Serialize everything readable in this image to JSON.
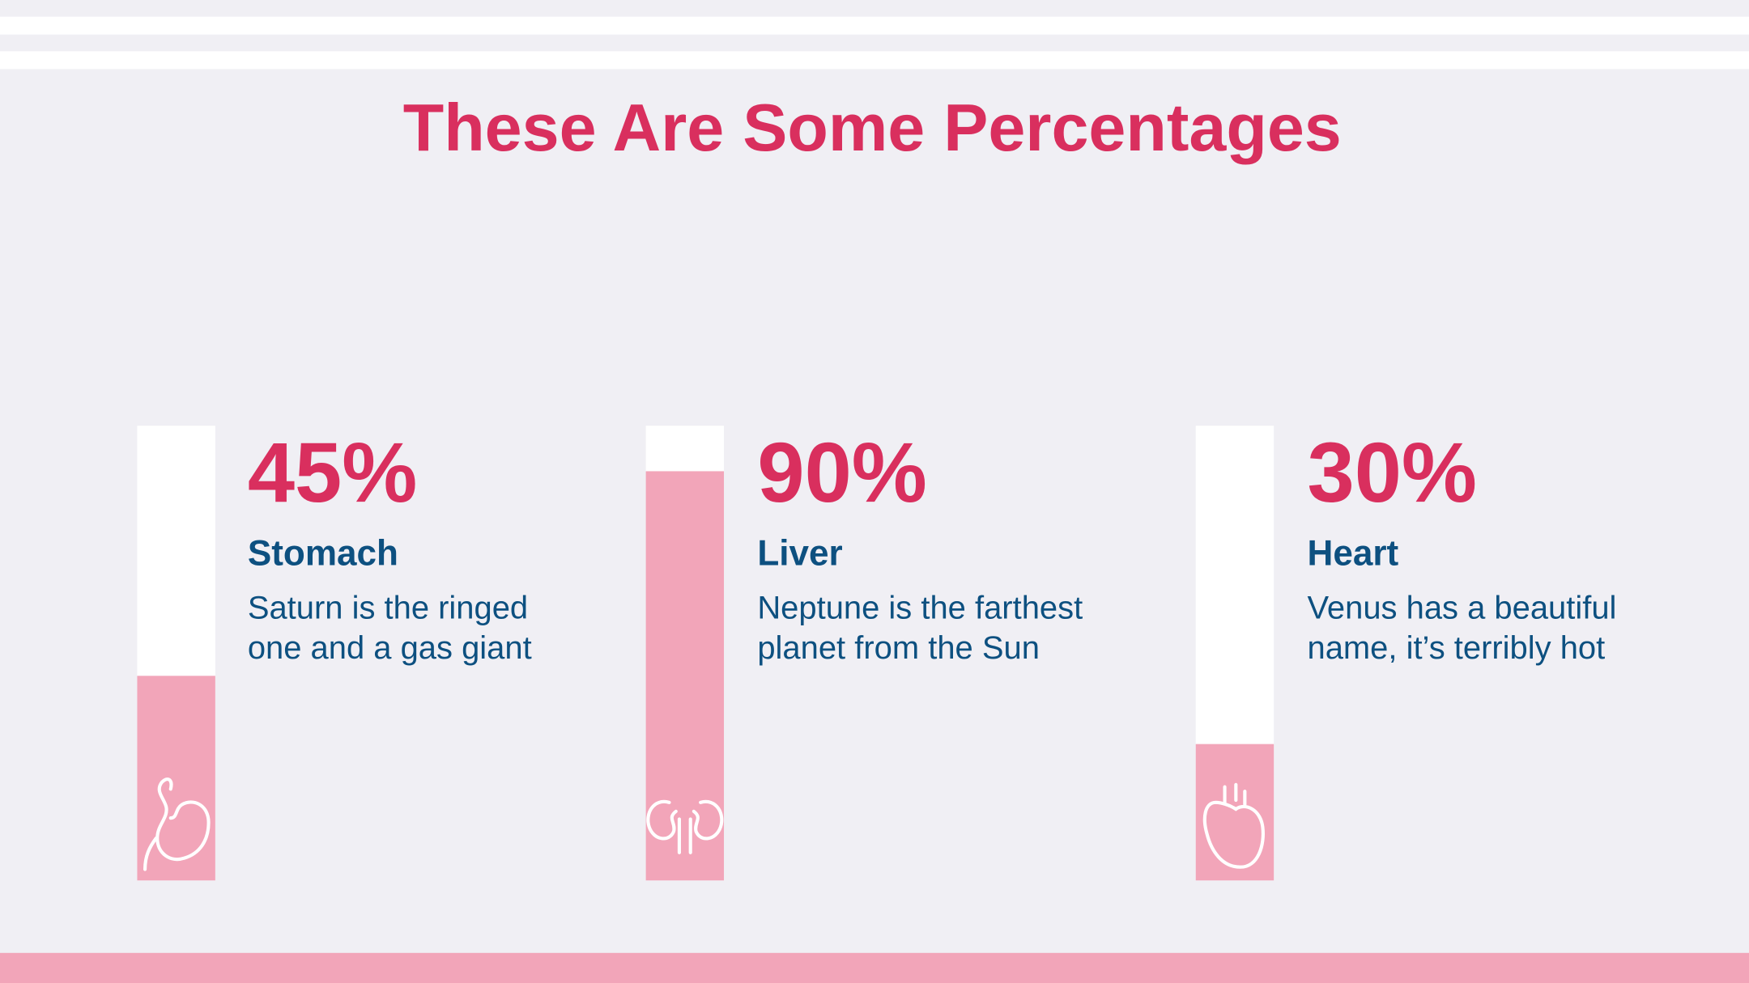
{
  "chart_data": {
    "type": "bar",
    "title": "These Are Some Percentages",
    "categories": [
      "Stomach",
      "Liver",
      "Heart"
    ],
    "values": [
      45,
      90,
      30
    ],
    "value_labels": [
      "45%",
      "90%",
      "30%"
    ],
    "descriptions": [
      [
        "Saturn is the ringed",
        "one and a gas giant"
      ],
      [
        "Neptune is the farthest",
        "planet from the Sun"
      ],
      [
        "Venus has a beautiful",
        "name, it’s terribly hot"
      ]
    ],
    "ylim": [
      0,
      100
    ],
    "color": "#f2a5b9"
  }
}
